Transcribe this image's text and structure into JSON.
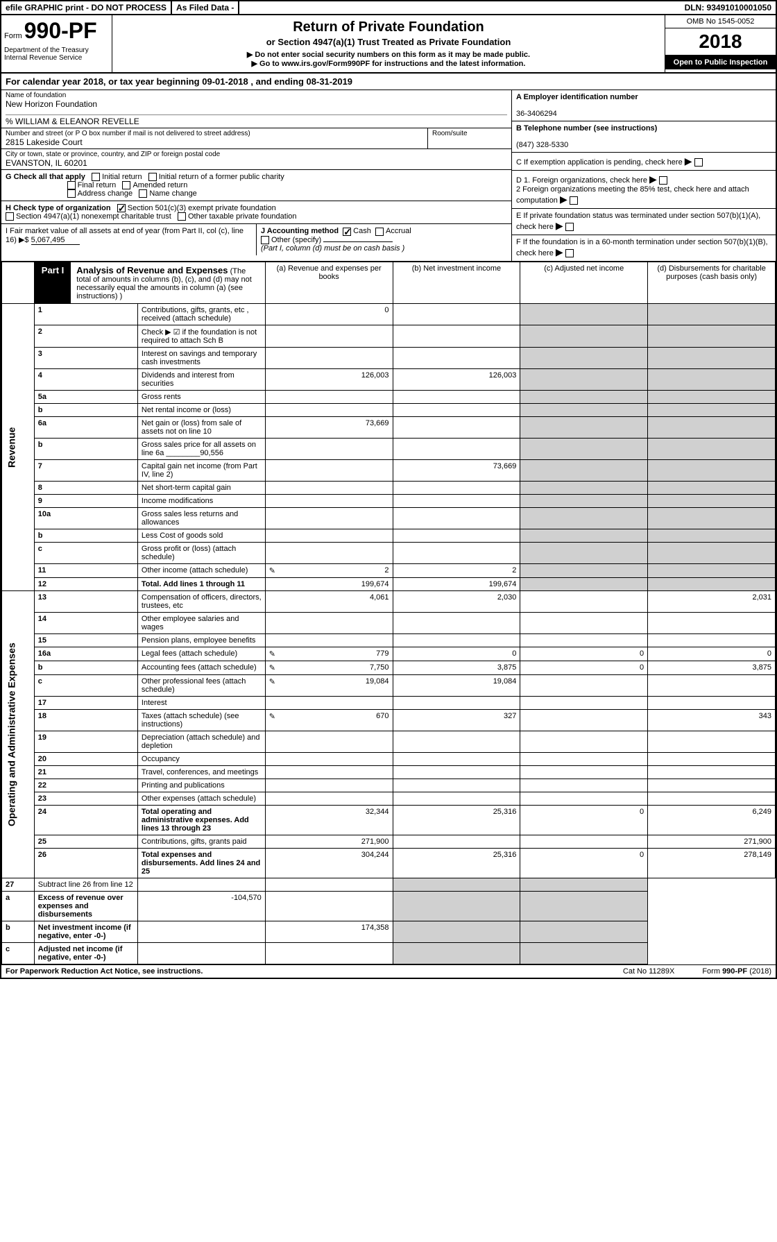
{
  "topbar": {
    "efile": "efile GRAPHIC print - DO NOT PROCESS",
    "asfiled": "As Filed Data -",
    "dln": "DLN: 93491010001050"
  },
  "header": {
    "form_prefix": "Form",
    "form_no": "990-PF",
    "dept": "Department of the Treasury",
    "irs": "Internal Revenue Service",
    "title": "Return of Private Foundation",
    "subtitle": "or Section 4947(a)(1) Trust Treated as Private Foundation",
    "warn": "▶ Do not enter social security numbers on this form as it may be made public.",
    "goto": "▶ Go to www.irs.gov/Form990PF for instructions and the latest information.",
    "omb": "OMB No 1545-0052",
    "year": "2018",
    "open": "Open to Public Inspection"
  },
  "cal": {
    "label_a": "For calendar year 2018, or tax year beginning ",
    "begin": "09-01-2018",
    "label_b": ", and ending ",
    "end": "08-31-2019"
  },
  "foundation": {
    "name_lbl": "Name of foundation",
    "name": "New Horizon Foundation",
    "care_of": "% WILLIAM & ELEANOR REVELLE",
    "addr_lbl": "Number and street (or P O  box number if mail is not delivered to street address)",
    "addr": "2815 Lakeside Court",
    "room_lbl": "Room/suite",
    "city_lbl": "City or town, state or province, country, and ZIP or foreign postal code",
    "city": "EVANSTON, IL  60201"
  },
  "right": {
    "A_lbl": "A Employer identification number",
    "A": "36-3406294",
    "B_lbl": "B Telephone number (see instructions)",
    "B": "(847) 328-5330",
    "C": "C If exemption application is pending, check here",
    "D1": "D 1. Foreign organizations, check here",
    "D2": "2 Foreign organizations meeting the 85% test, check here and attach computation",
    "E": "E  If private foundation status was terminated under section 507(b)(1)(A), check here",
    "F": "F  If the foundation is in a 60-month termination under section 507(b)(1)(B), check here"
  },
  "G": {
    "label": "G Check all that apply",
    "o1": "Initial return",
    "o2": "Initial return of a former public charity",
    "o3": "Final return",
    "o4": "Amended return",
    "o5": "Address change",
    "o6": "Name change"
  },
  "H": {
    "label": "H Check type of organization",
    "o1": "Section 501(c)(3) exempt private foundation",
    "o2": "Section 4947(a)(1) nonexempt charitable trust",
    "o3": "Other taxable private foundation"
  },
  "I": {
    "label": "I Fair market value of all assets at end of year (from Part II, col  (c), line 16) ▶$ ",
    "val": "5,067,495"
  },
  "J": {
    "label": "J Accounting method",
    "o1": "Cash",
    "o2": "Accrual",
    "o3": "Other (specify)",
    "note": "(Part I, column (d) must be on cash basis )"
  },
  "part1": {
    "tag": "Part I",
    "title": "Analysis of Revenue and Expenses",
    "note": "(The total of amounts in columns (b), (c), and (d) may not necessarily equal the amounts in column (a) (see instructions) )",
    "col_a": "(a) Revenue and expenses per books",
    "col_b": "(b) Net investment income",
    "col_c": "(c) Adjusted net income",
    "col_d": "(d) Disbursements for charitable purposes (cash basis only)"
  },
  "sections": {
    "rev": "Revenue",
    "exp": "Operating and Administrative Expenses"
  },
  "rows": [
    {
      "n": "1",
      "d": "Contributions, gifts, grants, etc , received (attach schedule)",
      "a": "0"
    },
    {
      "n": "2",
      "d": "Check ▶ ☑ if the foundation is not required to attach Sch  B"
    },
    {
      "n": "3",
      "d": "Interest on savings and temporary cash investments"
    },
    {
      "n": "4",
      "d": "Dividends and interest from securities",
      "a": "126,003",
      "b": "126,003"
    },
    {
      "n": "5a",
      "d": "Gross rents"
    },
    {
      "n": "b",
      "d": "Net rental income or (loss)"
    },
    {
      "n": "6a",
      "d": "Net gain or (loss) from sale of assets not on line 10",
      "a": "73,669"
    },
    {
      "n": "b",
      "d": "Gross sales price for all assets on line 6a",
      "inline": "90,556"
    },
    {
      "n": "7",
      "d": "Capital gain net income (from Part IV, line 2)",
      "b": "73,669"
    },
    {
      "n": "8",
      "d": "Net short-term capital gain"
    },
    {
      "n": "9",
      "d": "Income modifications"
    },
    {
      "n": "10a",
      "d": "Gross sales less returns and allowances"
    },
    {
      "n": "b",
      "d": "Less  Cost of goods sold"
    },
    {
      "n": "c",
      "d": "Gross profit or (loss) (attach schedule)"
    },
    {
      "n": "11",
      "d": "Other income (attach schedule)",
      "icon": true,
      "a": "2",
      "b": "2"
    },
    {
      "n": "12",
      "d": "Total. Add lines 1 through 11",
      "bold": true,
      "a": "199,674",
      "b": "199,674"
    }
  ],
  "exp_rows": [
    {
      "n": "13",
      "d": "Compensation of officers, directors, trustees, etc",
      "a": "4,061",
      "b": "2,030",
      "dd": "2,031"
    },
    {
      "n": "14",
      "d": "Other employee salaries and wages"
    },
    {
      "n": "15",
      "d": "Pension plans, employee benefits"
    },
    {
      "n": "16a",
      "d": "Legal fees (attach schedule)",
      "icon": true,
      "a": "779",
      "b": "0",
      "c": "0",
      "dd": "0"
    },
    {
      "n": "b",
      "d": "Accounting fees (attach schedule)",
      "icon": true,
      "a": "7,750",
      "b": "3,875",
      "c": "0",
      "dd": "3,875"
    },
    {
      "n": "c",
      "d": "Other professional fees (attach schedule)",
      "icon": true,
      "a": "19,084",
      "b": "19,084"
    },
    {
      "n": "17",
      "d": "Interest"
    },
    {
      "n": "18",
      "d": "Taxes (attach schedule) (see instructions)",
      "icon": true,
      "a": "670",
      "b": "327",
      "dd": "343"
    },
    {
      "n": "19",
      "d": "Depreciation (attach schedule) and depletion"
    },
    {
      "n": "20",
      "d": "Occupancy"
    },
    {
      "n": "21",
      "d": "Travel, conferences, and meetings"
    },
    {
      "n": "22",
      "d": "Printing and publications"
    },
    {
      "n": "23",
      "d": "Other expenses (attach schedule)"
    },
    {
      "n": "24",
      "d": "Total operating and administrative expenses. Add lines 13 through 23",
      "bold": true,
      "a": "32,344",
      "b": "25,316",
      "c": "0",
      "dd": "6,249"
    },
    {
      "n": "25",
      "d": "Contributions, gifts, grants paid",
      "a": "271,900",
      "dd": "271,900"
    },
    {
      "n": "26",
      "d": "Total expenses and disbursements. Add lines 24 and 25",
      "bold": true,
      "a": "304,244",
      "b": "25,316",
      "c": "0",
      "dd": "278,149"
    }
  ],
  "net_rows": [
    {
      "n": "27",
      "d": "Subtract line 26 from line 12"
    },
    {
      "n": "a",
      "d": "Excess of revenue over expenses and disbursements",
      "bold": true,
      "a": "-104,570"
    },
    {
      "n": "b",
      "d": "Net investment income (if negative, enter -0-)",
      "bold": true,
      "b": "174,358"
    },
    {
      "n": "c",
      "d": "Adjusted net income (if negative, enter -0-)",
      "bold": true
    }
  ],
  "footer": {
    "left": "For Paperwork Reduction Act Notice, see instructions.",
    "mid": "Cat  No  11289X",
    "right": "Form 990-PF (2018)"
  }
}
